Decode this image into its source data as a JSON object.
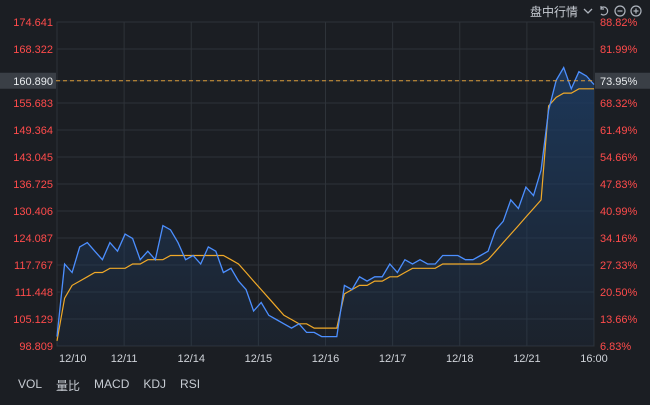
{
  "toolbar": {
    "title": "盘中行情",
    "icons": [
      "chevron-down-icon",
      "undo-icon",
      "zoom-out-icon",
      "zoom-in-icon"
    ]
  },
  "tabs": [
    "VOL",
    "量比",
    "MACD",
    "KDJ",
    "RSI"
  ],
  "colors": {
    "background": "#1b1e23",
    "grid": "#2e3339",
    "price_line": "#4c8fff",
    "avg_line": "#f0a928",
    "area_fill": "#1d3a5f",
    "ref_line": "#d99a3a",
    "left_labels": "#ff4b4b",
    "right_labels": "#ff4b4b",
    "x_labels": "#cfd3d9",
    "current_box": "#3a3f46"
  },
  "chart_data": {
    "type": "line",
    "x_ticks": [
      "12/10",
      "12/11",
      "12/14",
      "12/15",
      "12/16",
      "12/17",
      "12/18",
      "12/21",
      "16:00"
    ],
    "y_left_ticks": [
      "174.641",
      "168.322",
      "160.890",
      "155.683",
      "149.364",
      "143.045",
      "136.725",
      "130.406",
      "124.087",
      "117.767",
      "111.448",
      "105.129",
      "98.809"
    ],
    "y_right_ticks": [
      "88.82%",
      "81.99%",
      "73.95%",
      "68.32%",
      "61.49%",
      "54.66%",
      "47.83%",
      "40.99%",
      "34.16%",
      "27.33%",
      "20.50%",
      "13.66%",
      "6.83%"
    ],
    "ylim": [
      98.809,
      174.641
    ],
    "current_price": 160.89,
    "series": [
      {
        "values": [
          101,
          118,
          116,
          122,
          123,
          121,
          119,
          123,
          121,
          125,
          124,
          119,
          121,
          119,
          127,
          126,
          123,
          119,
          120,
          118,
          122,
          121,
          116,
          117,
          114,
          112,
          107,
          109,
          106,
          105,
          104,
          103,
          104,
          102,
          102,
          101,
          101,
          101,
          113,
          112,
          115,
          114,
          115,
          115,
          118,
          116,
          119,
          118,
          119,
          118,
          118,
          120,
          120,
          120,
          119,
          119,
          120,
          121,
          126,
          128,
          133,
          131,
          136,
          134,
          140,
          154,
          161,
          164,
          159,
          163,
          162,
          160
        ]
      },
      {
        "values": [
          100,
          110,
          113,
          114,
          115,
          116,
          116,
          117,
          117,
          117,
          118,
          118,
          119,
          119,
          119,
          120,
          120,
          120,
          120,
          120,
          120,
          120,
          120,
          119,
          118,
          116,
          114,
          112,
          110,
          108,
          106,
          105,
          104,
          104,
          103,
          103,
          103,
          103,
          111,
          112,
          113,
          113,
          114,
          114,
          115,
          115,
          116,
          117,
          117,
          117,
          117,
          118,
          118,
          118,
          118,
          118,
          118,
          119,
          121,
          123,
          125,
          127,
          129,
          131,
          133,
          155,
          157,
          158,
          158,
          159,
          159,
          159
        ]
      }
    ]
  }
}
